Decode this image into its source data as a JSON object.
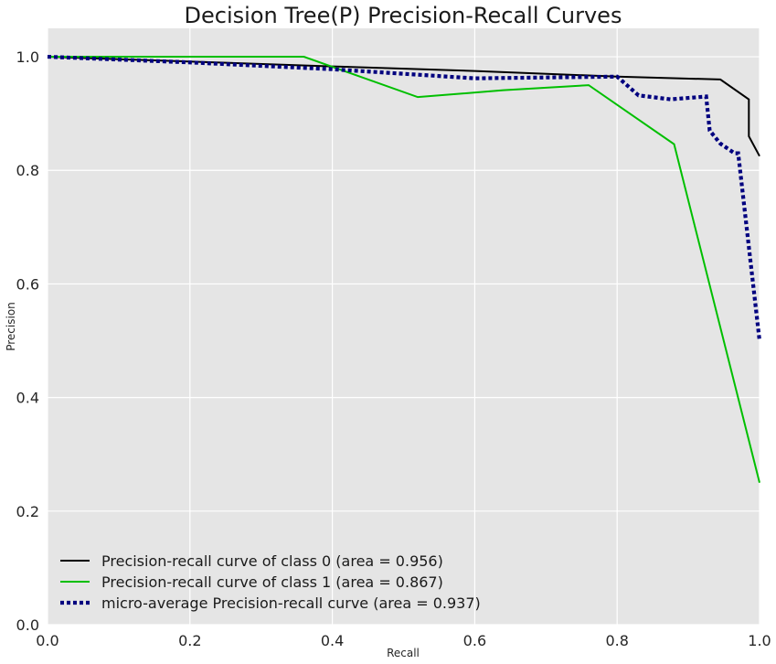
{
  "chart_data": {
    "type": "line",
    "title": "Decision Tree(P) Precision-Recall Curves",
    "xlabel": "Recall",
    "ylabel": "Precision",
    "xlim": [
      0,
      1
    ],
    "ylim": [
      0,
      1.05
    ],
    "xticks": [
      0.0,
      0.2,
      0.4,
      0.6,
      0.8,
      1.0
    ],
    "yticks": [
      0.0,
      0.2,
      0.4,
      0.6,
      0.8,
      1.0
    ],
    "xtick_labels": [
      "0.0",
      "0.2",
      "0.4",
      "0.6",
      "0.8",
      "1.0"
    ],
    "ytick_labels": [
      "0.0",
      "0.2",
      "0.4",
      "0.6",
      "0.8",
      "1.0"
    ],
    "grid": true,
    "legend_position": "lower-left",
    "background_color": "#e5e5e5",
    "series": [
      {
        "name": "Precision-recall curve of class 0 (area = 0.956)",
        "color": "#000000",
        "style": "solid",
        "x": [
          0.0,
          0.4,
          0.6,
          0.8,
          0.945,
          0.985,
          0.985,
          1.0
        ],
        "y": [
          1.0,
          0.983,
          0.975,
          0.965,
          0.96,
          0.925,
          0.86,
          0.825
        ]
      },
      {
        "name": "Precision-recall curve of class 1 (area = 0.867)",
        "color": "#00bf00",
        "style": "solid",
        "x": [
          0.0,
          0.36,
          0.52,
          0.64,
          0.76,
          0.88,
          1.0
        ],
        "y": [
          1.0,
          1.0,
          0.929,
          0.941,
          0.95,
          0.846,
          0.25
        ]
      },
      {
        "name": "micro-average Precision-recall curve (area = 0.937)",
        "color": "#00007f",
        "style": "dotted",
        "x": [
          0.0,
          0.2,
          0.4,
          0.6,
          0.8,
          0.83,
          0.875,
          0.925,
          0.93,
          0.945,
          0.965,
          0.97,
          1.0
        ],
        "y": [
          1.0,
          0.99,
          0.978,
          0.962,
          0.965,
          0.932,
          0.925,
          0.93,
          0.87,
          0.847,
          0.83,
          0.83,
          0.5
        ]
      }
    ]
  }
}
